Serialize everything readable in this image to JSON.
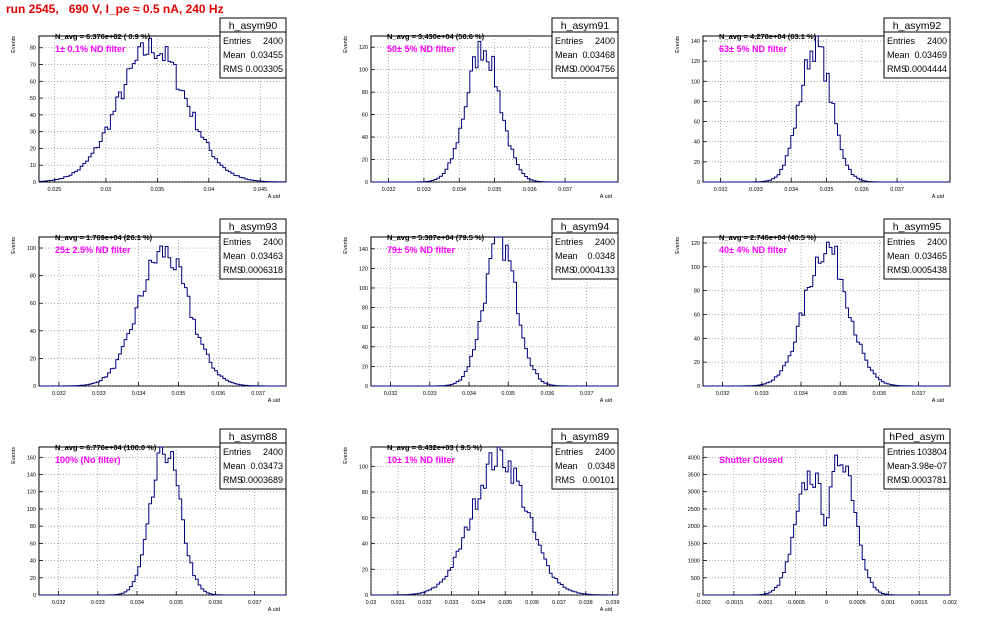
{
  "title": "run 2545,   690 V, I_pe ≈ 0.5 nA, 240 Hz",
  "colors": {
    "title": "#e00000",
    "hist": "#000080",
    "filter_label": "#ff00ff",
    "axis": "#000000",
    "grid": "#777777"
  },
  "chart_data": [
    {
      "type": "histogram",
      "name": "h_asym90",
      "navg": "N_avg = 6.376e+02 ( 0.9 %)",
      "filter": "1± 0.1% ND filter",
      "stats": {
        "entries": "2400",
        "mean": "0.03455",
        "rms": "0.003305"
      },
      "xlim": [
        0.0235,
        0.0475
      ],
      "ylim": [
        0,
        87
      ],
      "xticks": [
        0.025,
        0.03,
        0.035,
        0.04,
        0.045
      ],
      "xticklabels": [
        "0.025",
        "0.03",
        "0.035",
        "0.04",
        "0.045"
      ],
      "yticks": [
        0,
        10,
        20,
        30,
        40,
        50,
        60,
        70,
        80
      ],
      "xlabel": "A_uid",
      "ylabel": "Events",
      "mean": 0.03455,
      "sigma": 0.0033,
      "peak": 80,
      "shape": "single"
    },
    {
      "type": "histogram",
      "name": "h_asym91",
      "navg": "N_avg = 3.430e+04 (50.6 %)",
      "filter": "50± 5% ND filter",
      "stats": {
        "entries": "2400",
        "mean": "0.03468",
        "rms": "0.0004756"
      },
      "xlim": [
        0.0315,
        0.0385
      ],
      "ylim": [
        0,
        130
      ],
      "xticks": [
        0.032,
        0.033,
        0.034,
        0.035,
        0.036,
        0.037
      ],
      "xticklabels": [
        "0.032",
        "0.033",
        "0.034",
        "0.035",
        "0.036",
        "0.037"
      ],
      "yticks": [
        0,
        20,
        40,
        60,
        80,
        100,
        120
      ],
      "xlabel": "A_uid",
      "ylabel": "Events",
      "mean": 0.03468,
      "sigma": 0.000476,
      "peak": 120,
      "shape": "single"
    },
    {
      "type": "histogram",
      "name": "h_asym92",
      "navg": "N_avg = 4.278e+04 (63.1 %)",
      "filter": "63± 5% ND filter",
      "stats": {
        "entries": "2400",
        "mean": "0.03469",
        "rms": "0.0004444"
      },
      "xlim": [
        0.0315,
        0.0385
      ],
      "ylim": [
        0,
        145
      ],
      "xticks": [
        0.032,
        0.033,
        0.034,
        0.035,
        0.036,
        0.037
      ],
      "xticklabels": [
        "0.032",
        "0.033",
        "0.034",
        "0.035",
        "0.036",
        "0.037"
      ],
      "yticks": [
        0,
        20,
        40,
        60,
        80,
        100,
        120,
        140
      ],
      "xlabel": "A_uid",
      "ylabel": "Events",
      "mean": 0.03469,
      "sigma": 0.000444,
      "peak": 135,
      "shape": "single"
    },
    {
      "type": "histogram",
      "name": "h_asym93",
      "navg": "N_avg = 1.769e+04 (26.1 %)",
      "filter": "25± 2.5% ND filter",
      "stats": {
        "entries": "2400",
        "mean": "0.03463",
        "rms": "0.0006318"
      },
      "xlim": [
        0.0315,
        0.0377
      ],
      "ylim": [
        0,
        108
      ],
      "xticks": [
        0.032,
        0.033,
        0.034,
        0.035,
        0.036,
        0.037
      ],
      "xticklabels": [
        "0.032",
        "0.033",
        "0.034",
        "0.035",
        "0.036",
        "0.037"
      ],
      "yticks": [
        0,
        20,
        40,
        60,
        80,
        100
      ],
      "xlabel": "A_uid",
      "ylabel": "Events",
      "mean": 0.03463,
      "sigma": 0.000632,
      "peak": 97,
      "shape": "single"
    },
    {
      "type": "histogram",
      "name": "h_asym94",
      "navg": "N_avg = 5.387e+04 (79.5 %)",
      "filter": "79± 5% ND filter",
      "stats": {
        "entries": "2400",
        "mean": "0.0348",
        "rms": "0.0004133"
      },
      "xlim": [
        0.0315,
        0.0378
      ],
      "ylim": [
        0,
        152
      ],
      "xticks": [
        0.032,
        0.033,
        0.034,
        0.035,
        0.036,
        0.037
      ],
      "xticklabels": [
        "0.032",
        "0.033",
        "0.034",
        "0.035",
        "0.036",
        "0.037"
      ],
      "yticks": [
        0,
        20,
        40,
        60,
        80,
        100,
        120,
        140
      ],
      "xlabel": "A_uid",
      "ylabel": "Events",
      "mean": 0.0348,
      "sigma": 0.000413,
      "peak": 147,
      "shape": "single"
    },
    {
      "type": "histogram",
      "name": "h_asym95",
      "navg": "N_avg = 2.746e+04 (40.5 %)",
      "filter": "40± 4% ND filter",
      "stats": {
        "entries": "2400",
        "mean": "0.03465",
        "rms": "0.0005438"
      },
      "xlim": [
        0.0315,
        0.0378
      ],
      "ylim": [
        0,
        125
      ],
      "xticks": [
        0.032,
        0.033,
        0.034,
        0.035,
        0.036,
        0.037
      ],
      "xticklabels": [
        "0.032",
        "0.033",
        "0.034",
        "0.035",
        "0.036",
        "0.037"
      ],
      "yticks": [
        0,
        20,
        40,
        60,
        80,
        100,
        120
      ],
      "xlabel": "A_uid",
      "ylabel": "Events",
      "mean": 0.03465,
      "sigma": 0.000544,
      "peak": 117,
      "shape": "single"
    },
    {
      "type": "histogram",
      "name": "h_asym88",
      "navg": "N_avg = 6.776e+04 (100.0 %)",
      "filter": "100% (No filter)",
      "stats": {
        "entries": "2400",
        "mean": "0.03473",
        "rms": "0.0003689"
      },
      "xlim": [
        0.0315,
        0.0378
      ],
      "ylim": [
        0,
        172
      ],
      "xticks": [
        0.032,
        0.033,
        0.034,
        0.035,
        0.036,
        0.037
      ],
      "xticklabels": [
        "0.032",
        "0.033",
        "0.034",
        "0.035",
        "0.036",
        "0.037"
      ],
      "yticks": [
        0,
        20,
        40,
        60,
        80,
        100,
        120,
        140,
        160
      ],
      "xlabel": "A_uid",
      "ylabel": "Events",
      "mean": 0.03473,
      "sigma": 0.000369,
      "peak": 170,
      "shape": "single"
    },
    {
      "type": "histogram",
      "name": "h_asym89",
      "navg": "N_avg = 6.432e+03 ( 9.5 %)",
      "filter": "10± 1% ND filter",
      "stats": {
        "entries": "2400",
        "mean": "0.0348",
        "rms": "0.00101"
      },
      "xlim": [
        0.03,
        0.0392
      ],
      "ylim": [
        0,
        115
      ],
      "xticks": [
        0.03,
        0.031,
        0.032,
        0.033,
        0.034,
        0.035,
        0.036,
        0.037,
        0.038,
        0.039
      ],
      "xticklabels": [
        "0.03",
        "0.031",
        "0.032",
        "0.033",
        "0.034",
        "0.035",
        "0.036",
        "0.037",
        "0.038",
        "0.039"
      ],
      "yticks": [
        0,
        20,
        40,
        60,
        80,
        100
      ],
      "xlabel": "A_uid",
      "ylabel": "Events",
      "mean": 0.0348,
      "sigma": 0.00101,
      "peak": 108,
      "shape": "single"
    },
    {
      "type": "histogram",
      "name": "hPed_asym",
      "navg": "",
      "filter": "Shutter Closed",
      "stats": {
        "entries": "103804",
        "mean": "-3.98e-07",
        "rms": "0.0003781"
      },
      "xlim": [
        -0.002,
        0.002
      ],
      "ylim": [
        0,
        4300
      ],
      "xticks": [
        -0.002,
        -0.0015,
        -0.001,
        -0.0005,
        0,
        0.0005,
        0.001,
        0.0015,
        0.002
      ],
      "xticklabels": [
        "-0.002",
        "-0.0015",
        "-0.001",
        "-0.0005",
        "0",
        "0.0005",
        "0.001",
        "0.0015",
        "0.002"
      ],
      "yticks": [
        0,
        500,
        1000,
        1500,
        2000,
        2500,
        3000,
        3500,
        4000
      ],
      "xlabel": "",
      "ylabel": "",
      "mean": 0.0,
      "sigma": 0.000378,
      "peak": 4050,
      "shape": "double"
    }
  ]
}
